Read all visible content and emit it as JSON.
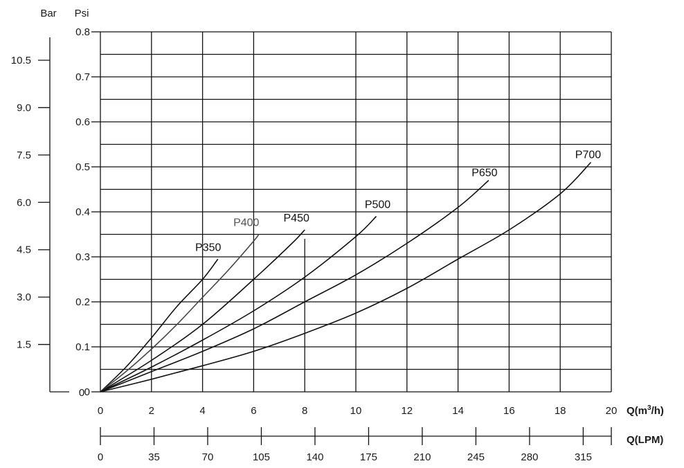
{
  "chart_data": {
    "type": "line",
    "title": "",
    "axes": {
      "x_primary": {
        "label_main": "Q(m",
        "label_sup": "3",
        "label_end": "/h)",
        "range": [
          0,
          20
        ],
        "ticks": [
          "0",
          "2",
          "4",
          "6",
          "8",
          "10",
          "12",
          "14",
          "16",
          "18",
          "20"
        ]
      },
      "x_secondary": {
        "label": "Q(LPM)",
        "ticks": [
          "0",
          "35",
          "70",
          "105",
          "140",
          "175",
          "210",
          "245",
          "280",
          "315"
        ]
      },
      "y_psi": {
        "label": "Psi",
        "range": [
          0,
          0.8
        ],
        "ticks": [
          "0",
          "0.1",
          "0.2",
          "0.3",
          "0.4",
          "0.5",
          "0.6",
          "0.7",
          "0.8"
        ]
      },
      "y_bar": {
        "label": "Bar",
        "ticks": [
          "1.5",
          "3.0",
          "4.5",
          "6.0",
          "7.5",
          "9.0",
          "10.5"
        ]
      }
    },
    "grid": true,
    "series": [
      {
        "name": "P350",
        "color": "#111111",
        "points": [
          [
            0,
            0
          ],
          [
            1,
            0.055
          ],
          [
            2,
            0.12
          ],
          [
            3,
            0.19
          ],
          [
            4,
            0.25
          ],
          [
            4.6,
            0.295
          ]
        ]
      },
      {
        "name": "P400",
        "color": "#444444",
        "points": [
          [
            0,
            0
          ],
          [
            1,
            0.045
          ],
          [
            2,
            0.095
          ],
          [
            3,
            0.15
          ],
          [
            4,
            0.21
          ],
          [
            5,
            0.27
          ],
          [
            6,
            0.335
          ],
          [
            6.2,
            0.35
          ]
        ]
      },
      {
        "name": "P450",
        "color": "#111111",
        "points": [
          [
            0,
            0
          ],
          [
            2,
            0.07
          ],
          [
            4,
            0.15
          ],
          [
            6,
            0.25
          ],
          [
            7.5,
            0.33
          ],
          [
            8,
            0.36
          ]
        ]
      },
      {
        "name": "P500",
        "color": "#111111",
        "points": [
          [
            0,
            0
          ],
          [
            2,
            0.055
          ],
          [
            4,
            0.115
          ],
          [
            6,
            0.18
          ],
          [
            8,
            0.255
          ],
          [
            10,
            0.345
          ],
          [
            10.8,
            0.39
          ]
        ]
      },
      {
        "name": "P650",
        "color": "#111111",
        "points": [
          [
            0,
            0
          ],
          [
            2,
            0.045
          ],
          [
            4,
            0.09
          ],
          [
            6,
            0.14
          ],
          [
            8,
            0.2
          ],
          [
            10,
            0.26
          ],
          [
            12,
            0.33
          ],
          [
            14,
            0.41
          ],
          [
            15.2,
            0.47
          ]
        ]
      },
      {
        "name": "P700",
        "color": "#111111",
        "points": [
          [
            0,
            0
          ],
          [
            2,
            0.028
          ],
          [
            4,
            0.058
          ],
          [
            6,
            0.09
          ],
          [
            8,
            0.13
          ],
          [
            10,
            0.175
          ],
          [
            12,
            0.23
          ],
          [
            14,
            0.295
          ],
          [
            16,
            0.36
          ],
          [
            18,
            0.44
          ],
          [
            19.2,
            0.51
          ]
        ]
      }
    ]
  }
}
